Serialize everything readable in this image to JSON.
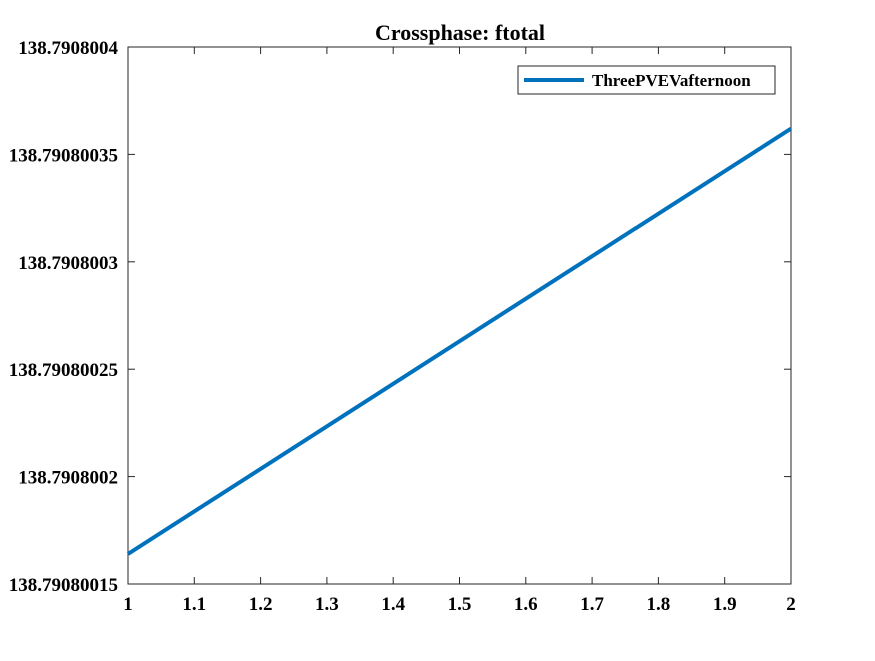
{
  "chart_data": {
    "type": "line",
    "title": "Crossphase: ftotal",
    "xlabel": "",
    "ylabel": "",
    "x_ticks": [
      "1",
      "1.1",
      "1.2",
      "1.3",
      "1.4",
      "1.5",
      "1.6",
      "1.7",
      "1.8",
      "1.9",
      "2"
    ],
    "x_tick_values": [
      1,
      1.1,
      1.2,
      1.3,
      1.4,
      1.5,
      1.6,
      1.7,
      1.8,
      1.9,
      2
    ],
    "y_ticks": [
      "138.79080015",
      "138.7908002",
      "138.79080025",
      "138.7908003",
      "138.79080035",
      "138.7908004"
    ],
    "y_tick_values": [
      138.79080015,
      138.7908002,
      138.79080025,
      138.7908003,
      138.79080035,
      138.7908004
    ],
    "xlim": [
      1,
      2
    ],
    "ylim": [
      138.79080015,
      138.7908004
    ],
    "grid": false,
    "legend_position": "top-right",
    "series": [
      {
        "name": "ThreePVEVafternoon",
        "color": "#0072BD",
        "x": [
          1,
          2
        ],
        "y": [
          138.790800164,
          138.790800362
        ]
      }
    ]
  }
}
